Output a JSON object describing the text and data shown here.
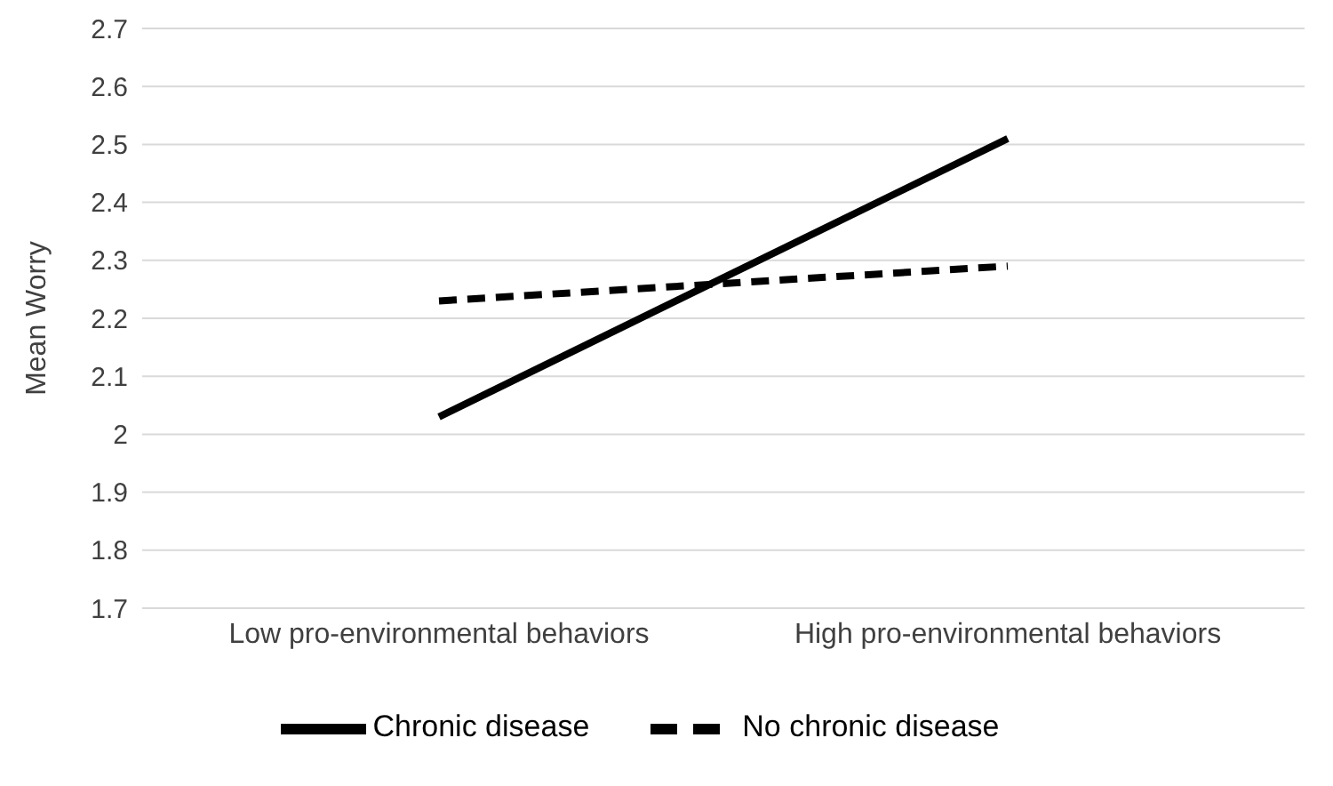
{
  "chart_data": {
    "type": "line",
    "ylabel": "Mean Worry",
    "categories": [
      "Low pro-environmental behaviors",
      "High pro-environmental behaviors"
    ],
    "series": [
      {
        "name": "Chronic disease",
        "color": "#000000",
        "values": [
          2.03,
          2.51
        ],
        "line_style": "solid"
      },
      {
        "name": "No chronic disease",
        "color": "#000000",
        "values": [
          2.23,
          2.29
        ],
        "line_style": "dashed"
      }
    ],
    "ylim": [
      1.7,
      2.7
    ],
    "yticks": [
      1.7,
      1.8,
      1.9,
      2,
      2.1,
      2.2,
      2.3,
      2.4,
      2.5,
      2.6,
      2.7
    ],
    "grid": "y",
    "legend": "bottom",
    "marker": "none"
  }
}
